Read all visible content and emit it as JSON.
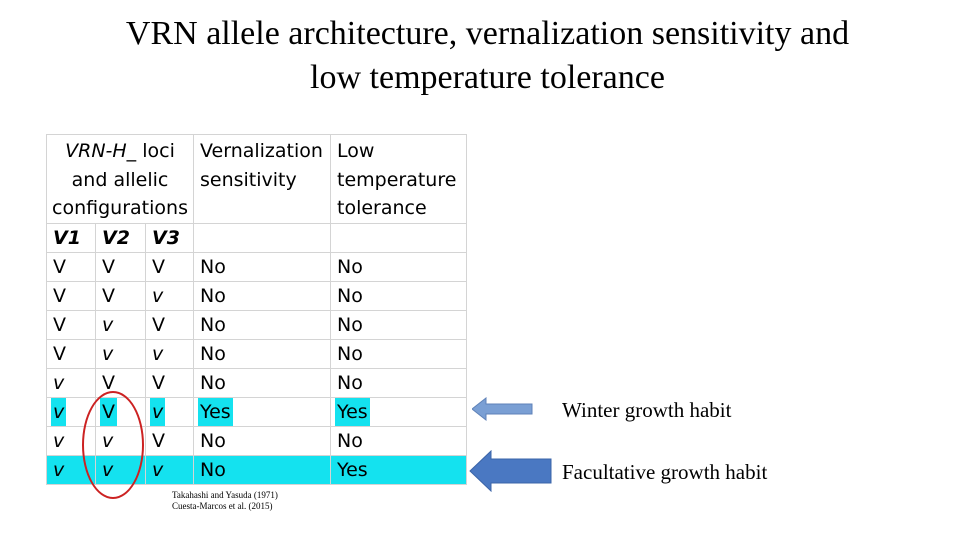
{
  "slide": {
    "title_line1": "VRN allele architecture, vernalization sensitivity and",
    "title_line2": "low temperature tolerance"
  },
  "table": {
    "header": {
      "loci_prefix": "VRN-H_",
      "loci_rest": " loci and allelic configurations",
      "vernalization": "Vernalization sensitivity",
      "low_temp": "Low temperature tolerance"
    },
    "subheader": [
      "V1",
      "V2",
      "V3"
    ],
    "rows": [
      {
        "v1": "V",
        "v2": "V",
        "v3": "V",
        "vern": "No",
        "low": "No"
      },
      {
        "v1": "V",
        "v2": "V",
        "v3": "v",
        "vern": "No",
        "low": "No"
      },
      {
        "v1": "V",
        "v2": "v",
        "v3": "V",
        "vern": "No",
        "low": "No"
      },
      {
        "v1": "V",
        "v2": "v",
        "v3": "v",
        "vern": "No",
        "low": "No"
      },
      {
        "v1": "v",
        "v2": "V",
        "v3": "V",
        "vern": "No",
        "low": "No"
      },
      {
        "v1": "v",
        "v2": "V",
        "v3": "v",
        "vern": "Yes",
        "low": "Yes"
      },
      {
        "v1": "v",
        "v2": "v",
        "v3": "V",
        "vern": "No",
        "low": "No"
      },
      {
        "v1": "v",
        "v2": "v",
        "v3": "v",
        "vern": "No",
        "low": "Yes"
      }
    ]
  },
  "annotations": {
    "winter_label": "Winter growth habit",
    "facultative_label": "Facultative growth habit",
    "citation_line1": "Takahashi and Yasuda (1971)",
    "citation_line2": "Cuesta-Marcos et al. (2015)"
  },
  "colors": {
    "highlight": "#14e2ef",
    "oval": "#cc2222",
    "winter_arrow": "#7a9fd4",
    "facultative_arrow": "#4a78c2"
  }
}
